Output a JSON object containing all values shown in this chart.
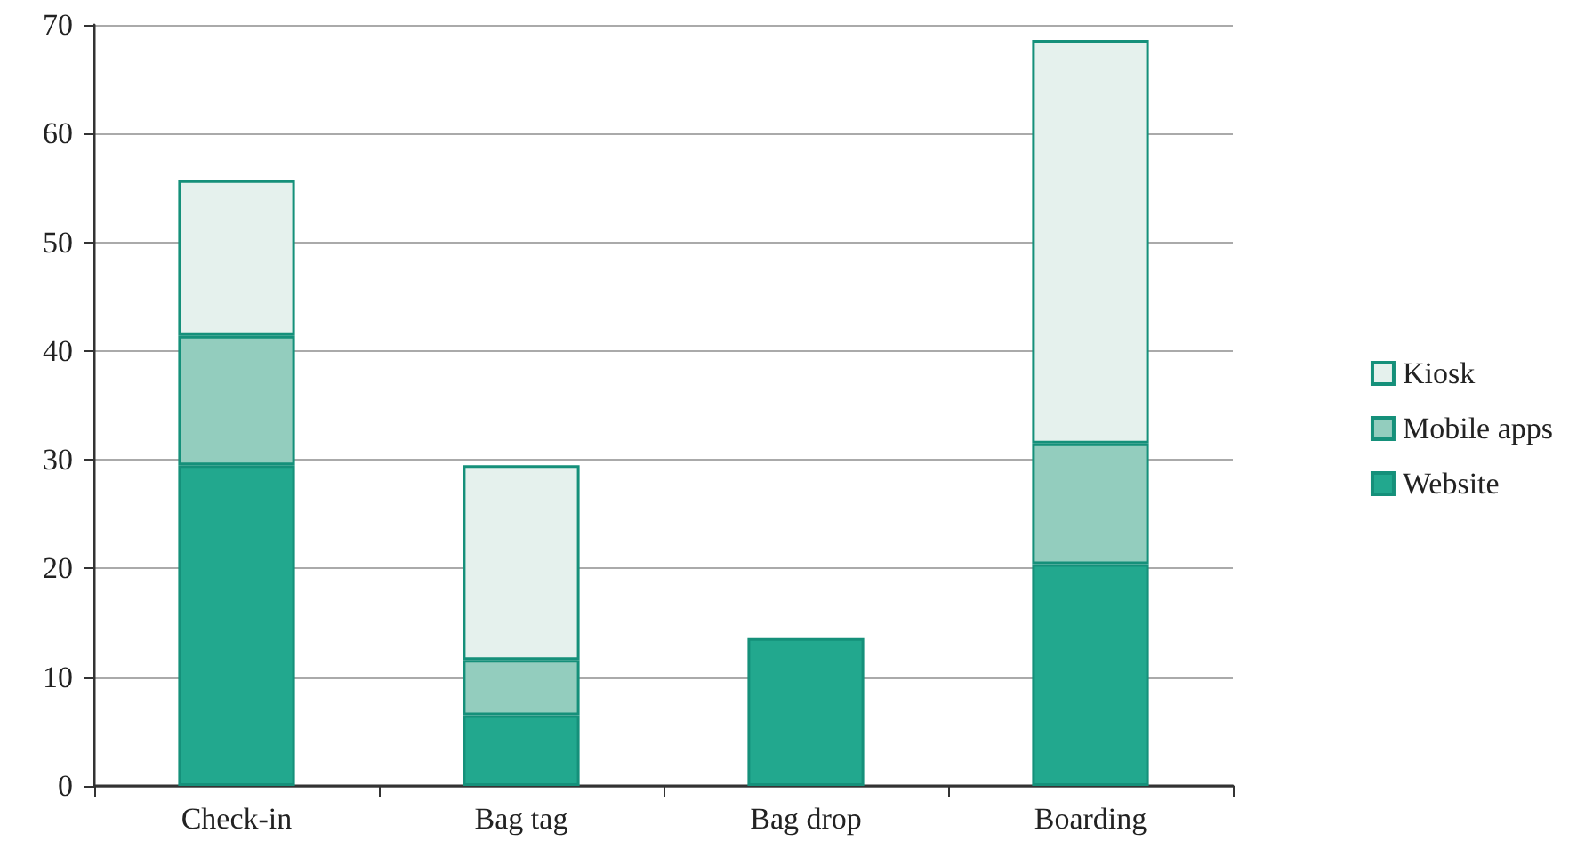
{
  "chart_data": {
    "type": "bar",
    "stacked": true,
    "categories": [
      "Check-in",
      "Bag tag",
      "Bag drop",
      "Boarding"
    ],
    "series": [
      {
        "name": "Website",
        "color": "#22a88e",
        "values": [
          29.5,
          6.5,
          13.6,
          20.4
        ]
      },
      {
        "name": "Mobile apps",
        "color": "#93cdbe",
        "values": [
          11.9,
          5.1,
          null,
          11.1
        ]
      },
      {
        "name": "Kiosk",
        "color": "#e5f1ed",
        "values": [
          14.3,
          17.9,
          null,
          37.1
        ]
      }
    ],
    "ylim": [
      0,
      70
    ],
    "yticks": [
      0,
      10,
      20,
      30,
      40,
      50,
      60,
      70
    ],
    "grid": "y",
    "legend": "right"
  }
}
